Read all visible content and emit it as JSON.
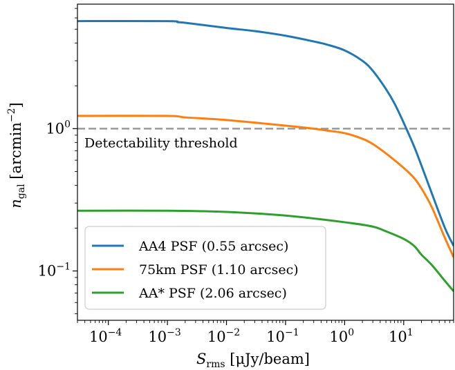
{
  "chart_data": {
    "type": "line",
    "xscale": "log",
    "yscale": "log",
    "xlim": [
      3e-05,
      70
    ],
    "ylim": [
      0.045,
      7.5
    ],
    "xlabel": {
      "main": "S",
      "sub": "rms",
      "unit": " [μJy/beam]"
    },
    "ylabel": {
      "main": "n",
      "sub": "gal",
      "unit": " [arcmin",
      "sup": "−2",
      "close": "]"
    },
    "x_ticks": [
      {
        "base": "10",
        "exp": "−4",
        "value": 0.0001
      },
      {
        "base": "10",
        "exp": "−3",
        "value": 0.001
      },
      {
        "base": "10",
        "exp": "−2",
        "value": 0.01
      },
      {
        "base": "10",
        "exp": "−1",
        "value": 0.1
      },
      {
        "base": "10",
        "exp": "0",
        "value": 1
      },
      {
        "base": "10",
        "exp": "1",
        "value": 10
      }
    ],
    "y_ticks": [
      {
        "base": "10",
        "exp": "−1",
        "value": 0.1
      },
      {
        "base": "10",
        "exp": "0",
        "value": 1
      }
    ],
    "threshold": {
      "value": 1.0,
      "label": "Detectability threshold",
      "color": "#999999"
    },
    "legend_position": "lower-left",
    "series": [
      {
        "name": "AA4 PSF (0.55 arcsec)",
        "color": "#1f77b4",
        "x": [
          3e-05,
          0.001,
          0.0015,
          0.002,
          0.01,
          0.03,
          0.1,
          0.3,
          0.5,
          1,
          2,
          3,
          5,
          7,
          10,
          15,
          20,
          30,
          50,
          70
        ],
        "y": [
          5.7,
          5.7,
          5.6,
          5.55,
          5.1,
          4.85,
          4.5,
          4.1,
          3.9,
          3.55,
          3.0,
          2.55,
          1.9,
          1.5,
          1.1,
          0.75,
          0.55,
          0.35,
          0.2,
          0.15
        ]
      },
      {
        "name": "75km PSF (1.10 arcsec)",
        "color": "#ff7f0e",
        "x": [
          3e-05,
          0.001,
          0.002,
          0.01,
          0.1,
          0.3,
          0.5,
          1,
          2,
          3,
          5,
          10,
          15,
          20,
          30,
          50,
          70
        ],
        "y": [
          1.23,
          1.23,
          1.2,
          1.15,
          1.05,
          1.0,
          0.97,
          0.93,
          0.85,
          0.78,
          0.67,
          0.53,
          0.45,
          0.38,
          0.28,
          0.17,
          0.125
        ]
      },
      {
        "name": "AA* PSF (2.06 arcsec)",
        "color": "#2ca02c",
        "x": [
          3e-05,
          0.001,
          0.01,
          0.1,
          1,
          3,
          5,
          10,
          15,
          20,
          30,
          50,
          70
        ],
        "y": [
          0.265,
          0.265,
          0.26,
          0.245,
          0.22,
          0.205,
          0.19,
          0.168,
          0.15,
          0.13,
          0.11,
          0.085,
          0.072
        ]
      }
    ]
  }
}
